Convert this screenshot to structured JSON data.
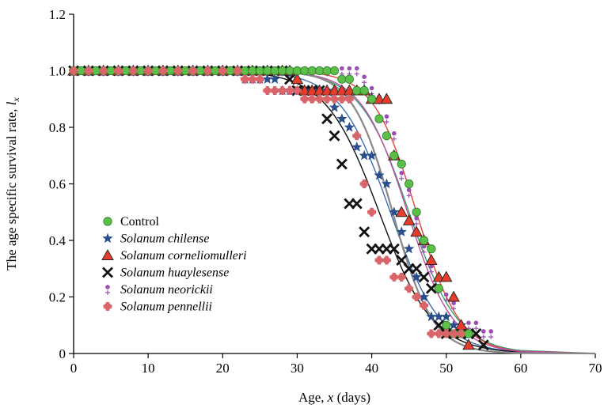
{
  "chart_data": {
    "type": "scatter",
    "xlabel": "Age, x (days)",
    "ylabel": "The age specific survival rate, lx",
    "xlim": [
      0,
      70
    ],
    "ylim": [
      0,
      1.2
    ],
    "xticks": [
      "0",
      "10",
      "20",
      "30",
      "40",
      "50",
      "60",
      "70"
    ],
    "yticks": [
      "0",
      "0.2",
      "0.4",
      "0.6",
      "0.8",
      "1.0",
      "1.2"
    ],
    "grid": false,
    "legend_position": "lower-left",
    "series": [
      {
        "name": "Control",
        "marker": "circle",
        "color": "#5bbf4a",
        "curve_color": "#3aa06a",
        "fit_midpoint": 45.0,
        "fit_spread": 3.3,
        "points": [
          [
            0,
            1.0
          ],
          [
            1,
            1.0
          ],
          [
            2,
            1.0
          ],
          [
            3,
            1.0
          ],
          [
            4,
            1.0
          ],
          [
            5,
            1.0
          ],
          [
            6,
            1.0
          ],
          [
            7,
            1.0
          ],
          [
            8,
            1.0
          ],
          [
            9,
            1.0
          ],
          [
            10,
            1.0
          ],
          [
            11,
            1.0
          ],
          [
            12,
            1.0
          ],
          [
            13,
            1.0
          ],
          [
            14,
            1.0
          ],
          [
            15,
            1.0
          ],
          [
            16,
            1.0
          ],
          [
            17,
            1.0
          ],
          [
            18,
            1.0
          ],
          [
            19,
            1.0
          ],
          [
            20,
            1.0
          ],
          [
            21,
            1.0
          ],
          [
            22,
            1.0
          ],
          [
            23,
            1.0
          ],
          [
            24,
            1.0
          ],
          [
            25,
            1.0
          ],
          [
            26,
            1.0
          ],
          [
            27,
            1.0
          ],
          [
            28,
            1.0
          ],
          [
            29,
            1.0
          ],
          [
            30,
            1.0
          ],
          [
            31,
            1.0
          ],
          [
            32,
            1.0
          ],
          [
            33,
            1.0
          ],
          [
            34,
            1.0
          ],
          [
            35,
            1.0
          ],
          [
            36,
            0.97
          ],
          [
            37,
            0.97
          ],
          [
            38,
            0.93
          ],
          [
            39,
            0.93
          ],
          [
            40,
            0.9
          ],
          [
            41,
            0.83
          ],
          [
            42,
            0.77
          ],
          [
            43,
            0.7
          ],
          [
            44,
            0.67
          ],
          [
            45,
            0.6
          ],
          [
            46,
            0.5
          ],
          [
            47,
            0.4
          ],
          [
            48,
            0.37
          ],
          [
            49,
            0.23
          ],
          [
            50,
            0.1
          ],
          [
            51,
            0.07
          ],
          [
            52,
            0.07
          ],
          [
            53,
            0.07
          ]
        ]
      },
      {
        "name": "Solanum chilense",
        "marker": "star",
        "color": "#2b4f8c",
        "curve_color": "#3a6fb0",
        "fit_midpoint": 42.5,
        "fit_spread": 3.4,
        "points": [
          [
            0,
            1.0
          ],
          [
            2,
            1.0
          ],
          [
            4,
            1.0
          ],
          [
            6,
            1.0
          ],
          [
            8,
            1.0
          ],
          [
            10,
            1.0
          ],
          [
            12,
            1.0
          ],
          [
            14,
            1.0
          ],
          [
            16,
            1.0
          ],
          [
            18,
            1.0
          ],
          [
            20,
            1.0
          ],
          [
            22,
            1.0
          ],
          [
            23,
            0.97
          ],
          [
            24,
            0.97
          ],
          [
            25,
            0.97
          ],
          [
            26,
            0.97
          ],
          [
            27,
            0.97
          ],
          [
            28,
            0.93
          ],
          [
            29,
            0.93
          ],
          [
            30,
            0.93
          ],
          [
            31,
            0.93
          ],
          [
            32,
            0.93
          ],
          [
            33,
            0.93
          ],
          [
            34,
            0.93
          ],
          [
            35,
            0.87
          ],
          [
            36,
            0.83
          ],
          [
            37,
            0.8
          ],
          [
            38,
            0.73
          ],
          [
            39,
            0.7
          ],
          [
            40,
            0.7
          ],
          [
            41,
            0.63
          ],
          [
            42,
            0.6
          ],
          [
            43,
            0.5
          ],
          [
            44,
            0.43
          ],
          [
            45,
            0.37
          ],
          [
            46,
            0.27
          ],
          [
            47,
            0.2
          ],
          [
            48,
            0.13
          ],
          [
            49,
            0.13
          ],
          [
            50,
            0.13
          ],
          [
            51,
            0.1
          ],
          [
            52,
            0.1
          ],
          [
            53,
            0.07
          ]
        ]
      },
      {
        "name": "Solanum corneliomulleri",
        "marker": "triangle",
        "color": "#e63c2c",
        "curve_color": "#e0453a",
        "fit_midpoint": 46.0,
        "fit_spread": 2.9,
        "points": [
          [
            0,
            1.0
          ],
          [
            2,
            1.0
          ],
          [
            4,
            1.0
          ],
          [
            6,
            1.0
          ],
          [
            8,
            1.0
          ],
          [
            10,
            1.0
          ],
          [
            12,
            1.0
          ],
          [
            14,
            1.0
          ],
          [
            16,
            1.0
          ],
          [
            18,
            1.0
          ],
          [
            20,
            1.0
          ],
          [
            22,
            1.0
          ],
          [
            24,
            1.0
          ],
          [
            26,
            1.0
          ],
          [
            28,
            1.0
          ],
          [
            29,
            1.0
          ],
          [
            30,
            0.97
          ],
          [
            31,
            0.93
          ],
          [
            32,
            0.93
          ],
          [
            33,
            0.93
          ],
          [
            34,
            0.93
          ],
          [
            35,
            0.93
          ],
          [
            36,
            0.93
          ],
          [
            37,
            0.93
          ],
          [
            38,
            0.93
          ],
          [
            39,
            0.93
          ],
          [
            40,
            0.9
          ],
          [
            41,
            0.9
          ],
          [
            42,
            0.9
          ],
          [
            43,
            0.7
          ],
          [
            44,
            0.5
          ],
          [
            45,
            0.47
          ],
          [
            46,
            0.43
          ],
          [
            47,
            0.4
          ],
          [
            48,
            0.33
          ],
          [
            49,
            0.27
          ],
          [
            50,
            0.27
          ],
          [
            51,
            0.2
          ],
          [
            52,
            0.1
          ],
          [
            53,
            0.03
          ]
        ]
      },
      {
        "name": "Solanum huaylesense",
        "marker": "x",
        "color": "#111111",
        "curve_color": "#111111",
        "fit_midpoint": 41.0,
        "fit_spread": 3.6,
        "points": [
          [
            0,
            1.0
          ],
          [
            2,
            1.0
          ],
          [
            4,
            1.0
          ],
          [
            6,
            1.0
          ],
          [
            8,
            1.0
          ],
          [
            10,
            1.0
          ],
          [
            12,
            1.0
          ],
          [
            14,
            1.0
          ],
          [
            16,
            1.0
          ],
          [
            18,
            1.0
          ],
          [
            20,
            1.0
          ],
          [
            22,
            1.0
          ],
          [
            24,
            1.0
          ],
          [
            26,
            1.0
          ],
          [
            28,
            1.0
          ],
          [
            29,
            0.97
          ],
          [
            30,
            0.93
          ],
          [
            31,
            0.93
          ],
          [
            32,
            0.93
          ],
          [
            33,
            0.93
          ],
          [
            34,
            0.83
          ],
          [
            35,
            0.77
          ],
          [
            36,
            0.67
          ],
          [
            37,
            0.53
          ],
          [
            38,
            0.53
          ],
          [
            39,
            0.43
          ],
          [
            40,
            0.37
          ],
          [
            41,
            0.37
          ],
          [
            42,
            0.37
          ],
          [
            43,
            0.37
          ],
          [
            44,
            0.33
          ],
          [
            45,
            0.3
          ],
          [
            46,
            0.3
          ],
          [
            47,
            0.27
          ],
          [
            48,
            0.23
          ],
          [
            49,
            0.1
          ],
          [
            50,
            0.07
          ],
          [
            51,
            0.07
          ],
          [
            52,
            0.07
          ],
          [
            53,
            0.07
          ],
          [
            54,
            0.07
          ],
          [
            55,
            0.03
          ]
        ]
      },
      {
        "name": "Solanum neorickii",
        "marker": "plus-dot",
        "color": "#9b4fb5",
        "curve_color": "#c04aa8",
        "fit_midpoint": 44.8,
        "fit_spread": 3.1,
        "points": [
          [
            0,
            1.0
          ],
          [
            2,
            1.0
          ],
          [
            4,
            1.0
          ],
          [
            6,
            1.0
          ],
          [
            8,
            1.0
          ],
          [
            10,
            1.0
          ],
          [
            12,
            1.0
          ],
          [
            14,
            1.0
          ],
          [
            16,
            1.0
          ],
          [
            18,
            1.0
          ],
          [
            20,
            1.0
          ],
          [
            22,
            1.0
          ],
          [
            24,
            1.0
          ],
          [
            26,
            1.0
          ],
          [
            28,
            1.0
          ],
          [
            30,
            1.0
          ],
          [
            32,
            1.0
          ],
          [
            34,
            1.0
          ],
          [
            36,
            1.0
          ],
          [
            37,
            1.0
          ],
          [
            38,
            1.0
          ],
          [
            39,
            0.97
          ],
          [
            40,
            0.93
          ],
          [
            41,
            0.9
          ],
          [
            42,
            0.83
          ],
          [
            43,
            0.77
          ],
          [
            44,
            0.63
          ],
          [
            45,
            0.57
          ],
          [
            46,
            0.47
          ],
          [
            47,
            0.37
          ],
          [
            48,
            0.3
          ],
          [
            49,
            0.23
          ],
          [
            50,
            0.2
          ],
          [
            51,
            0.17
          ],
          [
            52,
            0.1
          ],
          [
            53,
            0.1
          ],
          [
            54,
            0.1
          ],
          [
            55,
            0.07
          ],
          [
            56,
            0.07
          ]
        ]
      },
      {
        "name": "Solanum pennellii",
        "marker": "plus-square",
        "color": "#d9656a",
        "curve_color": "#888888",
        "fit_midpoint": 42.8,
        "fit_spread": 2.7,
        "points": [
          [
            0,
            1.0
          ],
          [
            2,
            1.0
          ],
          [
            4,
            1.0
          ],
          [
            6,
            1.0
          ],
          [
            8,
            1.0
          ],
          [
            10,
            1.0
          ],
          [
            12,
            1.0
          ],
          [
            14,
            1.0
          ],
          [
            16,
            1.0
          ],
          [
            18,
            1.0
          ],
          [
            20,
            1.0
          ],
          [
            22,
            1.0
          ],
          [
            23,
            0.97
          ],
          [
            24,
            0.97
          ],
          [
            25,
            0.97
          ],
          [
            26,
            0.93
          ],
          [
            27,
            0.93
          ],
          [
            28,
            0.93
          ],
          [
            29,
            0.93
          ],
          [
            30,
            0.93
          ],
          [
            31,
            0.9
          ],
          [
            32,
            0.9
          ],
          [
            33,
            0.9
          ],
          [
            34,
            0.9
          ],
          [
            35,
            0.9
          ],
          [
            36,
            0.9
          ],
          [
            37,
            0.9
          ],
          [
            38,
            0.77
          ],
          [
            39,
            0.6
          ],
          [
            40,
            0.5
          ],
          [
            41,
            0.33
          ],
          [
            42,
            0.33
          ],
          [
            43,
            0.27
          ],
          [
            44,
            0.27
          ],
          [
            45,
            0.23
          ],
          [
            46,
            0.2
          ],
          [
            47,
            0.17
          ],
          [
            48,
            0.07
          ],
          [
            49,
            0.07
          ],
          [
            50,
            0.07
          ],
          [
            51,
            0.07
          ],
          [
            52,
            0.07
          ]
        ]
      }
    ]
  }
}
